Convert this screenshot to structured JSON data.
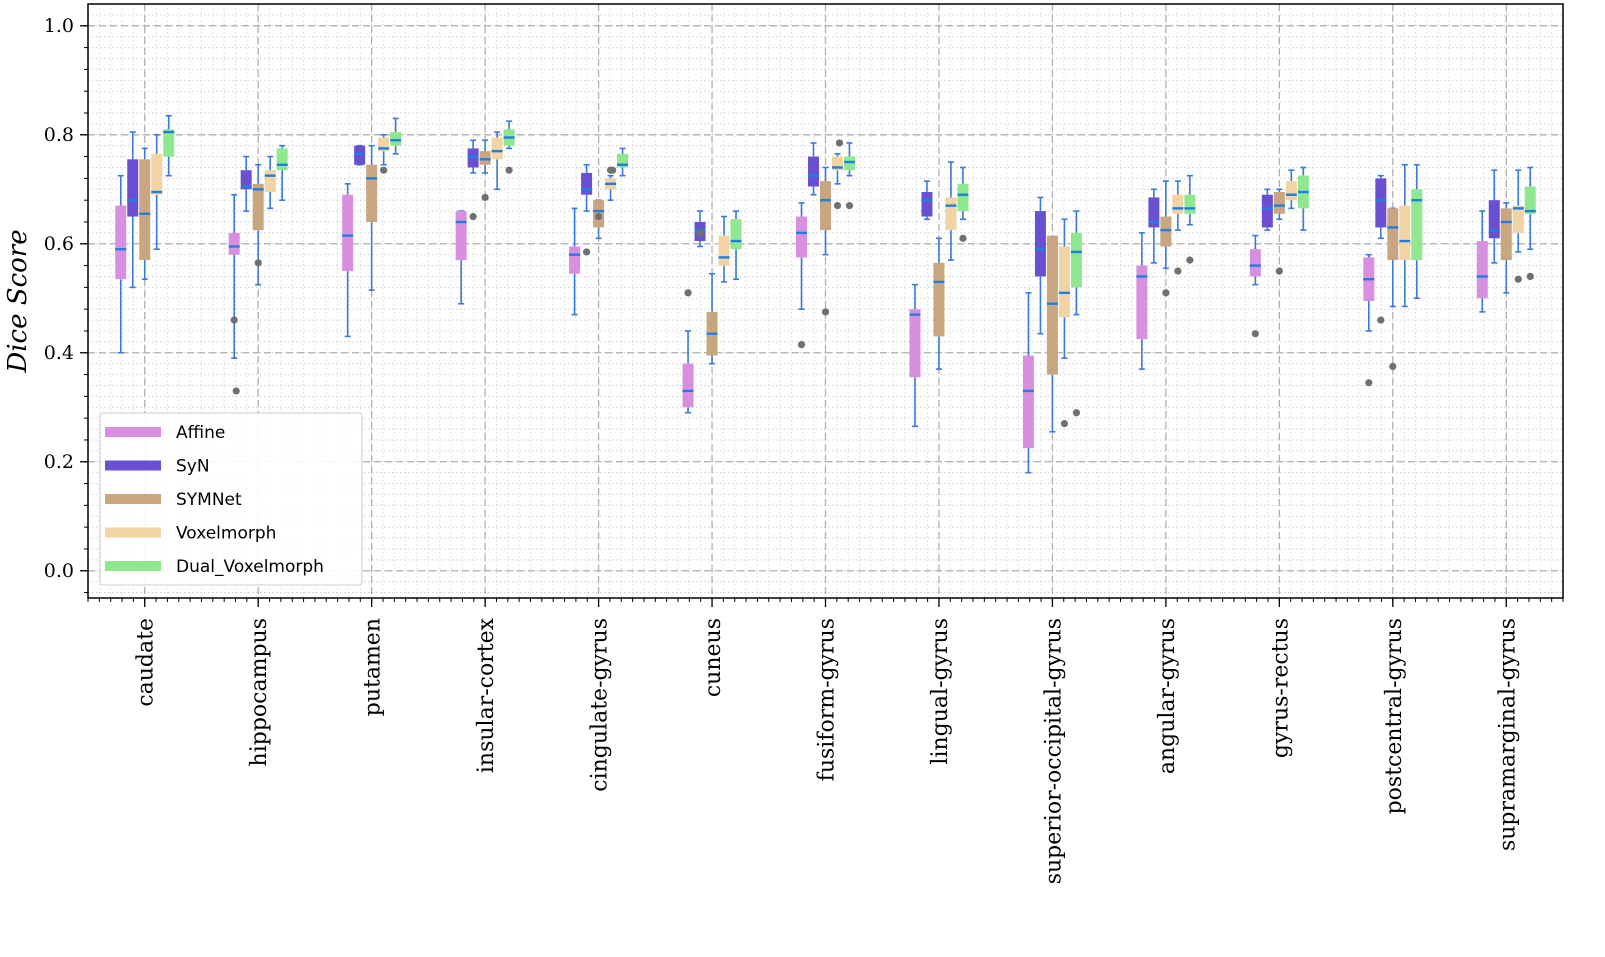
{
  "chart_data": {
    "type": "boxplot",
    "ylabel": "Dice Score",
    "xlabel": "",
    "ylim": [
      -0.05,
      1.04
    ],
    "yticks": [
      "0.0",
      "0.2",
      "0.4",
      "0.6",
      "0.8",
      "1.0"
    ],
    "grid": "major dashed, minor dotted",
    "legend_position": "lower-left",
    "median_color": "#1f7fe0",
    "whisker_color": "#3a7bd5",
    "flier_color": "#707070",
    "series": [
      {
        "name": "Affine",
        "color": "#d98fe0"
      },
      {
        "name": "SyN",
        "color": "#6a4fd0"
      },
      {
        "name": "SYMNet",
        "color": "#c9a680"
      },
      {
        "name": "Voxelmorph",
        "color": "#f2d3a3"
      },
      {
        "name": "Dual_Voxelmorph",
        "color": "#8fe88f"
      }
    ],
    "categories": [
      "caudate",
      "hippocampus",
      "putamen",
      "insular-cortex",
      "cingulate-gyrus",
      "cuneus",
      "fusiform-gyrus",
      "lingual-gyrus",
      "superior-occipital-gyrus",
      "angular-gyrus",
      "gyrus-rectus",
      "postcentral-gyrus",
      "supramarginal-gyrus"
    ],
    "boxes": [
      [
        [
          0.4,
          0.535,
          0.59,
          0.67,
          0.725,
          []
        ],
        [
          0.52,
          0.65,
          0.68,
          0.755,
          0.805,
          []
        ],
        [
          0.535,
          0.57,
          0.655,
          0.755,
          0.775,
          []
        ],
        [
          0.59,
          0.69,
          0.695,
          0.765,
          0.8,
          []
        ],
        [
          0.725,
          0.76,
          0.805,
          0.81,
          0.835,
          []
        ]
      ],
      [
        [
          0.39,
          0.58,
          0.595,
          0.62,
          0.69,
          [
            0.46,
            0.33
          ]
        ],
        [
          0.66,
          0.7,
          0.705,
          0.735,
          0.76,
          []
        ],
        [
          0.525,
          0.625,
          0.7,
          0.71,
          0.745,
          [
            0.565
          ]
        ],
        [
          0.665,
          0.695,
          0.725,
          0.735,
          0.76,
          []
        ],
        [
          0.68,
          0.735,
          0.745,
          0.775,
          0.78,
          []
        ]
      ],
      [
        [
          0.43,
          0.55,
          0.615,
          0.69,
          0.71,
          []
        ],
        [
          0.745,
          0.745,
          0.765,
          0.78,
          0.78,
          []
        ],
        [
          0.515,
          0.64,
          0.72,
          0.745,
          0.78,
          []
        ],
        [
          0.745,
          0.77,
          0.775,
          0.795,
          0.8,
          [
            0.735
          ]
        ],
        [
          0.765,
          0.78,
          0.79,
          0.805,
          0.83,
          []
        ]
      ],
      [
        [
          0.49,
          0.57,
          0.64,
          0.66,
          0.66,
          []
        ],
        [
          0.73,
          0.74,
          0.76,
          0.775,
          0.79,
          [
            0.65
          ]
        ],
        [
          0.73,
          0.745,
          0.755,
          0.77,
          0.79,
          [
            0.685
          ]
        ],
        [
          0.7,
          0.755,
          0.77,
          0.795,
          0.805,
          []
        ],
        [
          0.775,
          0.78,
          0.795,
          0.81,
          0.825,
          [
            0.735
          ]
        ]
      ],
      [
        [
          0.47,
          0.545,
          0.58,
          0.595,
          0.665,
          []
        ],
        [
          0.66,
          0.69,
          0.7,
          0.73,
          0.745,
          [
            0.585
          ]
        ],
        [
          0.61,
          0.63,
          0.66,
          0.68,
          0.68,
          [
            0.65
          ]
        ],
        [
          0.68,
          0.7,
          0.71,
          0.72,
          0.725,
          [
            0.735,
            0.735
          ]
        ],
        [
          0.725,
          0.74,
          0.745,
          0.765,
          0.775,
          []
        ]
      ],
      [
        [
          0.29,
          0.3,
          0.33,
          0.38,
          0.44,
          [
            0.51
          ]
        ],
        [
          0.595,
          0.605,
          0.625,
          0.64,
          0.66,
          [
            0.62
          ]
        ],
        [
          0.38,
          0.395,
          0.435,
          0.475,
          0.545,
          []
        ],
        [
          0.53,
          0.56,
          0.575,
          0.615,
          0.65,
          []
        ],
        [
          0.535,
          0.59,
          0.605,
          0.645,
          0.66,
          []
        ]
      ],
      [
        [
          0.48,
          0.575,
          0.62,
          0.65,
          0.675,
          [
            0.415
          ]
        ],
        [
          0.69,
          0.705,
          0.725,
          0.76,
          0.785,
          []
        ],
        [
          0.58,
          0.625,
          0.68,
          0.715,
          0.74,
          [
            0.475
          ]
        ],
        [
          0.71,
          0.735,
          0.74,
          0.76,
          0.765,
          [
            0.67,
            0.785
          ]
        ],
        [
          0.725,
          0.735,
          0.75,
          0.76,
          0.785,
          [
            0.67
          ]
        ]
      ],
      [
        [
          0.265,
          0.355,
          0.47,
          0.48,
          0.525,
          []
        ],
        [
          0.645,
          0.65,
          0.68,
          0.695,
          0.715,
          []
        ],
        [
          0.37,
          0.43,
          0.53,
          0.565,
          0.61,
          []
        ],
        [
          0.57,
          0.625,
          0.67,
          0.685,
          0.75,
          []
        ],
        [
          0.645,
          0.66,
          0.69,
          0.71,
          0.74,
          [
            0.61
          ]
        ]
      ],
      [
        [
          0.18,
          0.225,
          0.33,
          0.395,
          0.51,
          []
        ],
        [
          0.435,
          0.54,
          0.59,
          0.66,
          0.685,
          []
        ],
        [
          0.255,
          0.36,
          0.49,
          0.615,
          0.61,
          []
        ],
        [
          0.39,
          0.465,
          0.51,
          0.595,
          0.645,
          [
            0.27
          ]
        ],
        [
          0.47,
          0.52,
          0.585,
          0.62,
          0.66,
          [
            0.29
          ]
        ]
      ],
      [
        [
          0.37,
          0.425,
          0.54,
          0.56,
          0.62,
          []
        ],
        [
          0.565,
          0.63,
          0.64,
          0.685,
          0.7,
          []
        ],
        [
          0.555,
          0.595,
          0.625,
          0.65,
          0.715,
          [
            0.51
          ]
        ],
        [
          0.625,
          0.655,
          0.665,
          0.69,
          0.715,
          [
            0.55
          ]
        ],
        [
          0.635,
          0.655,
          0.665,
          0.69,
          0.725,
          [
            0.57
          ]
        ]
      ],
      [
        [
          0.525,
          0.54,
          0.56,
          0.59,
          0.615,
          [
            0.435
          ]
        ],
        [
          0.625,
          0.63,
          0.665,
          0.69,
          0.7,
          []
        ],
        [
          0.645,
          0.655,
          0.67,
          0.695,
          0.7,
          [
            0.55
          ]
        ],
        [
          0.665,
          0.68,
          0.69,
          0.715,
          0.735,
          []
        ],
        [
          0.625,
          0.665,
          0.695,
          0.725,
          0.74,
          []
        ]
      ],
      [
        [
          0.44,
          0.495,
          0.535,
          0.575,
          0.58,
          [
            0.345
          ]
        ],
        [
          0.61,
          0.63,
          0.68,
          0.72,
          0.725,
          [
            0.46
          ]
        ],
        [
          0.485,
          0.57,
          0.63,
          0.665,
          0.665,
          [
            0.375
          ]
        ],
        [
          0.485,
          0.57,
          0.605,
          0.67,
          0.745,
          []
        ],
        [
          0.5,
          0.57,
          0.68,
          0.7,
          0.745,
          []
        ]
      ],
      [
        [
          0.475,
          0.5,
          0.54,
          0.605,
          0.66,
          []
        ],
        [
          0.565,
          0.61,
          0.625,
          0.68,
          0.735,
          []
        ],
        [
          0.51,
          0.57,
          0.64,
          0.665,
          0.675,
          []
        ],
        [
          0.585,
          0.62,
          0.665,
          0.67,
          0.735,
          [
            0.535
          ]
        ],
        [
          0.59,
          0.655,
          0.66,
          0.705,
          0.74,
          [
            0.54
          ]
        ]
      ]
    ]
  }
}
